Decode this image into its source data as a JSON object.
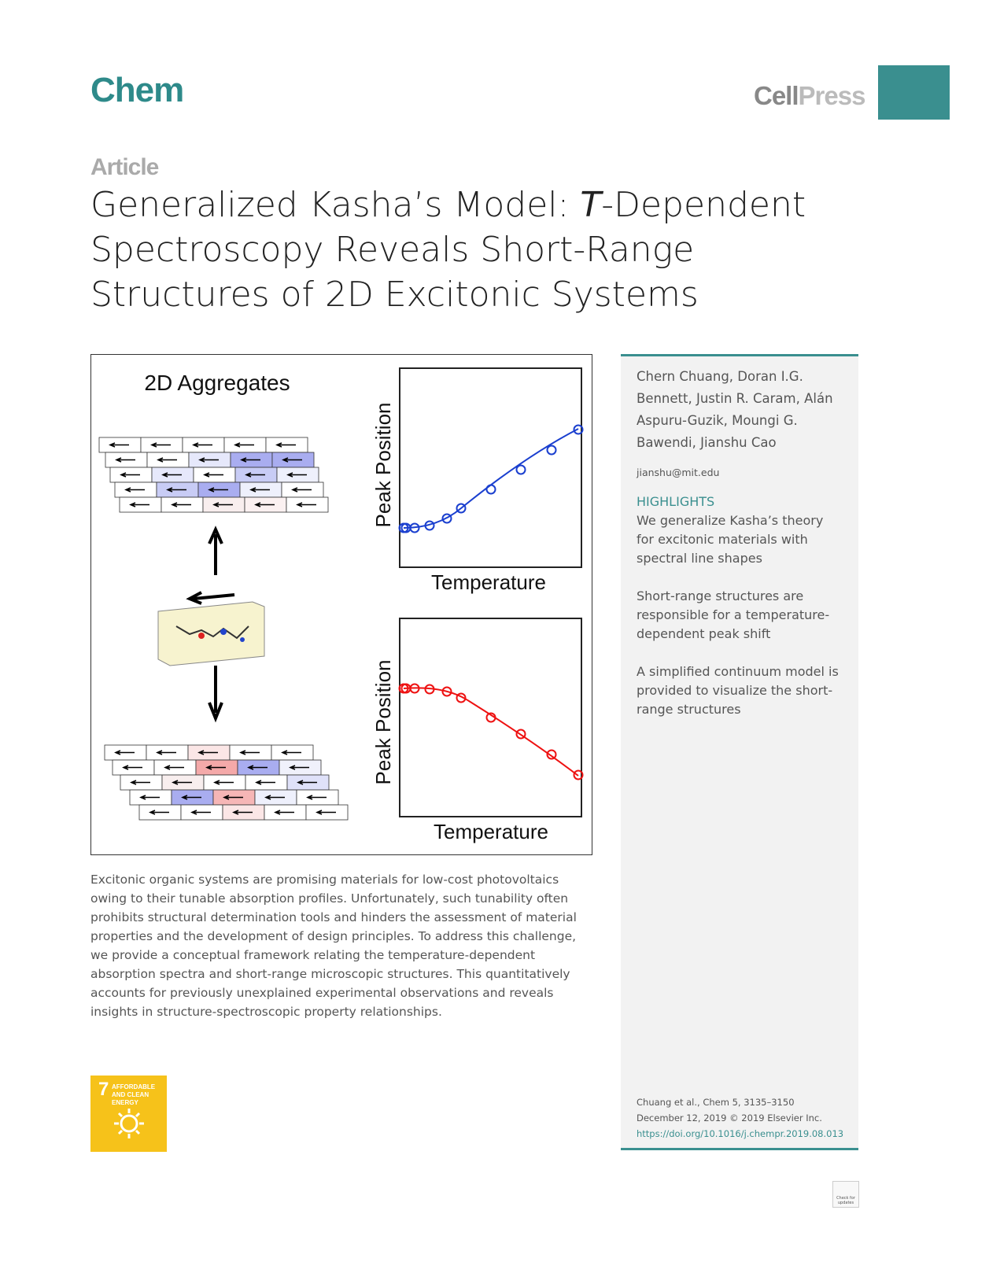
{
  "header": {
    "journal": "Chem",
    "publisher": [
      "Cell",
      "Press"
    ]
  },
  "article_type": "Article",
  "title": {
    "parts": [
      "Generalized Kasha’s Model: ",
      "T",
      "-Dependent Spectroscopy Reveals Short-Range Structures of 2D Excitonic Systems"
    ]
  },
  "graphical_abstract": {
    "label": "2D Aggregates",
    "plots": [
      {
        "y_label": "Peak Position",
        "x_label": "Temperature"
      },
      {
        "y_label": "Peak Position",
        "x_label": "Temperature"
      }
    ]
  },
  "sidebar": {
    "authors": "Chern Chuang, Doran I.G. Bennett, Justin R. Caram, Alán Aspuru-Guzik, Moungi G. Bawendi, Jianshu Cao",
    "email": "jianshu@mit.edu",
    "highlights_heading": "HIGHLIGHTS",
    "highlights": [
      "We generalize Kasha’s theory for excitonic materials with spectral line shapes",
      "Short-range structures are responsible for a temperature-dependent peak shift",
      "A simplified continuum model is provided to visualize the short-range structures"
    ],
    "citation": [
      "Chuang et al., Chem 5, 3135–3150",
      "December 12, 2019 © 2019 Elsevier Inc.",
      "https://doi.org/10.1016/j.chempr.2019.08.013"
    ]
  },
  "abstract": "Excitonic organic systems are promising materials for low-cost photovoltaics owing to their tunable absorption profiles. Unfortunately, such tunability often prohibits structural determination tools and hinders the assessment of material properties and the development of design principles. To address this challenge, we provide a conceptual framework relating the temperature-dependent absorption spectra and short-range microscopic structures. This quantitatively accounts for previously unexplained experimental observations and reveals insights in structure-spectroscopic property relationships.",
  "sdg_badge": {
    "number": "7",
    "label": "AFFORDABLE AND CLEAN ENERGY"
  },
  "update_badge": "Check for updates"
}
